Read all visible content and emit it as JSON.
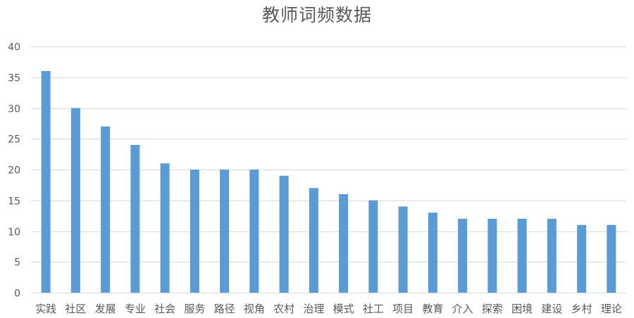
{
  "chart_data": {
    "type": "bar",
    "title": "教师词频数据",
    "xlabel": "",
    "ylabel": "",
    "ylim": [
      0,
      40
    ],
    "yticks": [
      0,
      5,
      10,
      15,
      20,
      25,
      30,
      35,
      40
    ],
    "grid": true,
    "legend": "none",
    "bar_color": "#5B9BD5",
    "grid_color": "#D9D9D9",
    "categories": [
      "实践",
      "社区",
      "发展",
      "专业",
      "社会",
      "服务",
      "路径",
      "视角",
      "农村",
      "治理",
      "模式",
      "社工",
      "项目",
      "教育",
      "介入",
      "探索",
      "困境",
      "建设",
      "乡村",
      "理论"
    ],
    "values": [
      36,
      30,
      27,
      24,
      21,
      20,
      20,
      20,
      19,
      17,
      16,
      15,
      14,
      13,
      12,
      12,
      12,
      12,
      11,
      11
    ]
  }
}
